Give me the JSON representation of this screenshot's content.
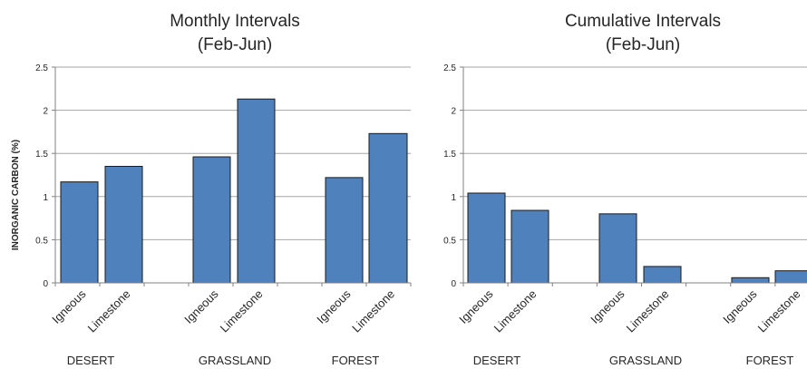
{
  "chart_data": [
    {
      "type": "bar",
      "title_line1": "Monthly Intervals",
      "title_line2": "(Feb-Jun)",
      "ylabel": "INORGANIC CARBON (%)",
      "xlabel": "",
      "ylim": [
        0,
        2.5
      ],
      "yticks": [
        "0",
        "0.5",
        "1",
        "1.5",
        "2",
        "2.5"
      ],
      "grid": true,
      "legend": "none",
      "groups": [
        {
          "label": "DESERT",
          "bars": [
            {
              "label": "Igneous",
              "value": 1.17
            },
            {
              "label": "Limestone",
              "value": 1.35
            }
          ]
        },
        {
          "label": "GRASSLAND",
          "bars": [
            {
              "label": "Igneous",
              "value": 1.46
            },
            {
              "label": "Limestone",
              "value": 2.13
            }
          ]
        },
        {
          "label": "FOREST",
          "bars": [
            {
              "label": "Igneous",
              "value": 1.22
            },
            {
              "label": "Limestone",
              "value": 1.73
            }
          ]
        }
      ]
    },
    {
      "type": "bar",
      "title_line1": "Cumulative Intervals",
      "title_line2": "(Feb-Jun)",
      "ylabel": "",
      "xlabel": "",
      "ylim": [
        0,
        2.5
      ],
      "yticks": [
        "0",
        "0.5",
        "1",
        "1.5",
        "2",
        "2.5"
      ],
      "grid": true,
      "legend": "none",
      "groups": [
        {
          "label": "DESERT",
          "bars": [
            {
              "label": "Igneous",
              "value": 1.04
            },
            {
              "label": "Limestone",
              "value": 0.84
            }
          ]
        },
        {
          "label": "GRASSLAND",
          "bars": [
            {
              "label": "Igneous",
              "value": 0.8
            },
            {
              "label": "Limestone",
              "value": 0.19
            }
          ]
        },
        {
          "label": "FOREST",
          "bars": [
            {
              "label": "Igneous",
              "value": 0.06
            },
            {
              "label": "Limestone",
              "value": 0.14
            }
          ]
        }
      ]
    }
  ],
  "colors": {
    "bar_fill": "#4f81bd",
    "bar_stroke": "#1a1a1a",
    "grid": "#a6a6a6",
    "axis": "#808080",
    "text": "#262626"
  }
}
